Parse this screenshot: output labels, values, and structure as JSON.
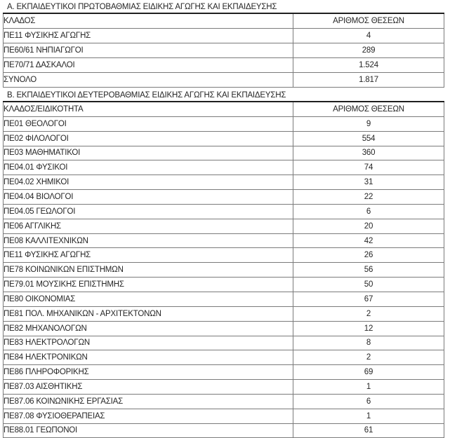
{
  "colors": {
    "background": "#ffffff",
    "text": "#262626",
    "table_border": "#7b7b7b",
    "table_top_rule": "#1f1f1f"
  },
  "sections": [
    {
      "title": "Α. ΕΚΠΑΙΔΕΥΤΙΚΟΙ ΠΡΩΤΟΒΑΘΜΙΑΣ ΕΙΔΙΚΗΣ ΑΓΩΓΗΣ ΚΑΙ ΕΚΠΑΙΔΕΥΣΗΣ",
      "columns": [
        "ΚΛΑΔΟΣ",
        "ΑΡΙΘΜΟΣ ΘΕΣΕΩΝ"
      ],
      "rows": [
        [
          "ΠΕ11 ΦΥΣΙΚΗΣ ΑΓΩΓΗΣ",
          "4"
        ],
        [
          "ΠΕ60/61 ΝΗΠΙΑΓΩΓΟΙ",
          "289"
        ],
        [
          "ΠΕ70/71 ΔΑΣΚΑΛΟΙ",
          "1.524"
        ],
        [
          "ΣΥΝΟΛΟ",
          "1.817"
        ]
      ]
    },
    {
      "title": "Β. ΕΚΠΑΙΔΕΥΤΙΚΟΙ ΔΕΥΤΕΡΟΒΑΘΜΙΑΣ ΕΙΔΙΚΗΣ ΑΓΩΓΗΣ ΚΑΙ ΕΚΠΑΙΔΕΥΣΗΣ",
      "columns": [
        "ΚΛΑΔΟΣ/ΕΙΔΙΚΟΤΗΤΑ",
        "ΑΡΙΘΜΟΣ ΘΕΣΕΩΝ"
      ],
      "rows": [
        [
          "ΠΕ01 ΘΕΟΛΟΓΟΙ",
          "9"
        ],
        [
          "ΠΕ02 ΦΙΛΟΛΟΓΟΙ",
          "554"
        ],
        [
          "ΠΕ03 ΜΑΘΗΜΑΤΙΚΟΙ",
          "360"
        ],
        [
          "ΠΕ04.01 ΦΥΣΙΚΟΙ",
          "74"
        ],
        [
          "ΠΕ04.02 ΧΗΜΙΚΟΙ",
          "31"
        ],
        [
          "ΠΕ04.04 ΒΙΟΛΟΓΟΙ",
          "22"
        ],
        [
          "ΠΕ04.05 ΓΕΩΛΟΓΟΙ",
          "6"
        ],
        [
          "ΠΕ06 ΑΓΓΛΙΚΗΣ",
          "20"
        ],
        [
          "ΠΕ08 ΚΑΛΛΙΤΕΧΝΙΚΩΝ",
          "42"
        ],
        [
          "ΠΕ11 ΦΥΣΙΚΗΣ ΑΓΩΓΗΣ",
          "26"
        ],
        [
          "ΠΕ78 ΚΟΙΝΩΝΙΚΩΝ ΕΠΙΣΤΗΜΩΝ",
          "56"
        ],
        [
          "ΠΕ79.01 ΜΟΥΣΙΚΗΣ ΕΠΙΣΤΗΜΗΣ",
          "50"
        ],
        [
          "ΠΕ80 ΟΙΚΟΝΟΜΙΑΣ",
          "67"
        ],
        [
          "ΠΕ81 ΠΟΛ. ΜΗΧΑΝΙΚΩΝ - ΑΡΧΙΤΕΚΤΟΝΩΝ",
          "2"
        ],
        [
          "ΠΕ82 ΜΗΧΑΝΟΛΟΓΩΝ",
          "12"
        ],
        [
          "ΠΕ83 ΗΛΕΚΤΡΟΛΟΓΩΝ",
          "8"
        ],
        [
          "ΠΕ84 ΗΛΕΚΤΡΟΝΙΚΩΝ",
          "2"
        ],
        [
          "ΠΕ86 ΠΛΗΡΟΦΟΡΙΚΗΣ",
          "69"
        ],
        [
          "ΠΕ87.03 ΑΙΣΘΗΤΙΚΗΣ",
          "1"
        ],
        [
          "ΠΕ87.06 ΚΟΙΝΩΝΙΚΗΣ ΕΡΓΑΣΙΑΣ",
          "6"
        ],
        [
          "ΠΕ87.08 ΦΥΣΙΟΘΕΡΑΠΕΙΑΣ",
          "1"
        ],
        [
          "ΠΕ88.01 ΓΕΩΠΟΝΟΙ",
          "61"
        ]
      ]
    }
  ]
}
